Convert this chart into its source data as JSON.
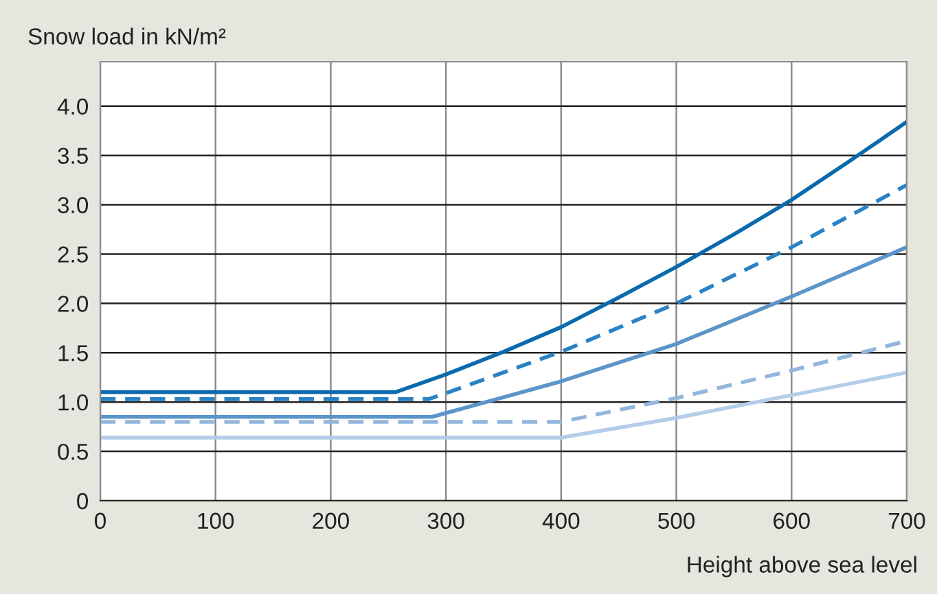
{
  "chart_data": {
    "type": "line",
    "ylabel": "Snow load in kN/m²",
    "xlabel": "Height above sea level",
    "xlim": [
      0,
      700
    ],
    "xticks": [
      0,
      100,
      200,
      300,
      400,
      500,
      600,
      700
    ],
    "ylim": [
      0,
      4.45
    ],
    "yticks": [
      0,
      0.5,
      {
        "value": 1,
        "label": "1.0"
      },
      1.5,
      {
        "value": 2,
        "label": "2.0"
      },
      2.5,
      {
        "value": 3,
        "label": "3.0"
      },
      3.5,
      {
        "value": 4,
        "label": "4.0"
      }
    ],
    "grid": true,
    "marker": "none",
    "series": [
      {
        "color": "#0a6aad",
        "line_style": "solid",
        "x": [
          0,
          256,
          300,
          350,
          400,
          450,
          500,
          550,
          600,
          650,
          700
        ],
        "values": [
          1.1,
          1.1,
          1.28,
          1.51,
          1.76,
          2.06,
          2.37,
          2.7,
          3.05,
          3.44,
          3.84
        ]
      },
      {
        "color": "#2a82c4",
        "line_style": "dashed",
        "x": [
          0,
          285,
          300,
          400,
          500,
          600,
          700
        ],
        "values": [
          1.03,
          1.03,
          1.09,
          1.51,
          2.0,
          2.57,
          3.2
        ]
      },
      {
        "color": "#5b95c9",
        "line_style": "solid",
        "x": [
          0,
          288,
          400,
          500,
          600,
          700
        ],
        "values": [
          0.85,
          0.85,
          1.21,
          1.59,
          2.07,
          2.57
        ]
      },
      {
        "color": "#94b6dc",
        "line_style": "dashed",
        "x": [
          0,
          400,
          500,
          600,
          700
        ],
        "values": [
          0.8,
          0.8,
          1.04,
          1.32,
          1.62
        ]
      },
      {
        "color": "#b4cde8",
        "line_style": "solid",
        "x": [
          0,
          400,
          500,
          600,
          700
        ],
        "values": [
          0.64,
          0.64,
          0.84,
          1.07,
          1.3
        ]
      }
    ]
  }
}
